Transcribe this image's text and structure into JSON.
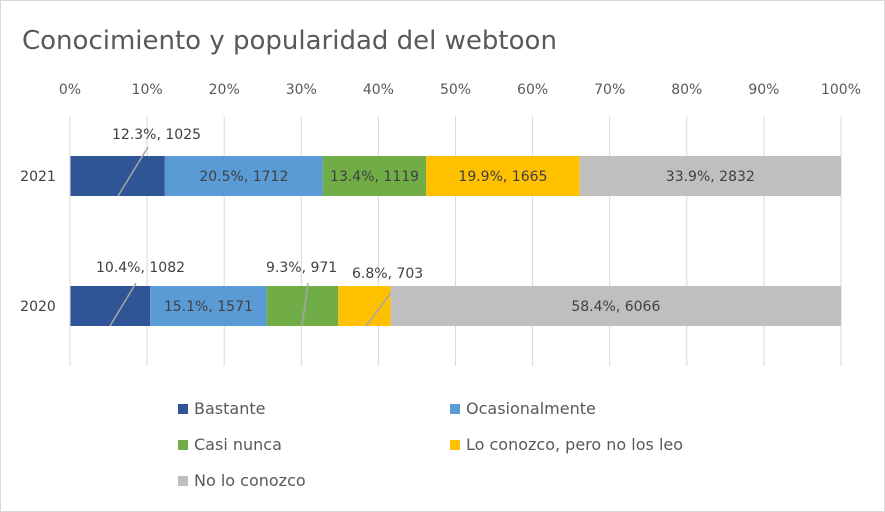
{
  "chart_data": {
    "type": "bar",
    "orientation": "horizontal",
    "stacked": "percent",
    "title": "Conocimiento y popularidad del webtoon",
    "xlabel": "",
    "ylabel": "",
    "xlim": [
      0,
      100
    ],
    "x_ticks": [
      "0%",
      "10%",
      "20%",
      "30%",
      "40%",
      "50%",
      "60%",
      "70%",
      "80%",
      "90%",
      "100%"
    ],
    "grid": true,
    "legend_position": "bottom",
    "categories": [
      "2021",
      "2020"
    ],
    "series": [
      {
        "name": "Bastante",
        "color": "#2f5597",
        "percent": [
          12.3,
          10.4
        ],
        "count": [
          1025,
          1082
        ],
        "labels": [
          "12.3%, 1025",
          "10.4%, 1082"
        ]
      },
      {
        "name": "Ocasionalmente",
        "color": "#5b9bd5",
        "percent": [
          20.5,
          15.1
        ],
        "count": [
          1712,
          1571
        ],
        "labels": [
          "20.5%, 1712",
          "15.1%, 1571"
        ]
      },
      {
        "name": "Casi nunca",
        "color": "#70ad47",
        "percent": [
          13.4,
          9.3
        ],
        "count": [
          1119,
          971
        ],
        "labels": [
          "13.4%, 1119",
          "9.3%, 971"
        ]
      },
      {
        "name": "Lo conozco, pero no los leo",
        "color": "#ffc000",
        "percent": [
          19.9,
          6.8
        ],
        "count": [
          1665,
          703
        ],
        "labels": [
          "19.9%, 1665",
          "6.8%, 703"
        ]
      },
      {
        "name": "No lo conozco",
        "color": "#bfbfbf",
        "percent": [
          33.9,
          58.4
        ],
        "count": [
          2832,
          6066
        ],
        "labels": [
          "33.9%, 2832",
          "58.4%, 6066"
        ]
      }
    ]
  }
}
